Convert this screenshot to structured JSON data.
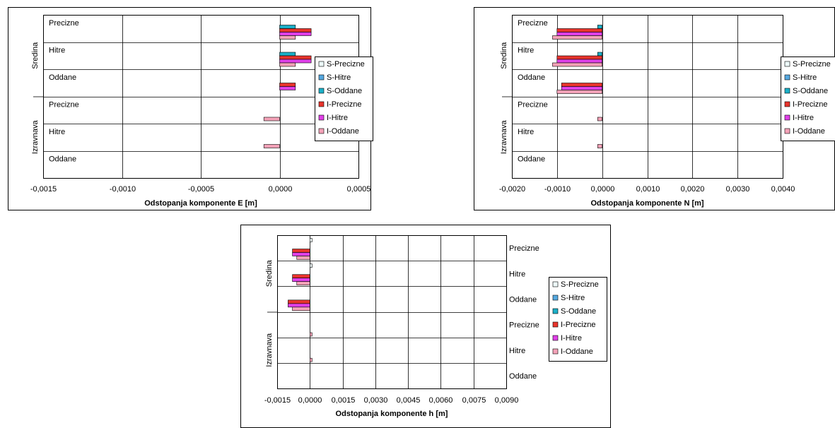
{
  "legend_items": [
    {
      "label": "S-Precizne",
      "color": "#eefafa"
    },
    {
      "label": "S-Hitre",
      "color": "#55a8e0"
    },
    {
      "label": "S-Oddane",
      "color": "#1bb0c8"
    },
    {
      "label": "I-Precizne",
      "color": "#e8342c"
    },
    {
      "label": "I-Hitre",
      "color": "#e040e8"
    },
    {
      "label": "I-Oddane",
      "color": "#f4a2b8"
    }
  ],
  "chart_data": [
    {
      "type": "bar",
      "orientation": "horizontal",
      "xlabel": "Odstopanja komponente E [m]",
      "xlim": [
        -0.0015,
        0.0005
      ],
      "xticks": [
        "-0,0015",
        "-0,0010",
        "-0,0005",
        "0,0000",
        "0,0005"
      ],
      "category_label_position": "left",
      "groups": [
        {
          "label": "Sredina",
          "categories": [
            "Precizne",
            "Hitre",
            "Oddane"
          ]
        },
        {
          "label": "Izravnava",
          "categories": [
            "Precizne",
            "Hitre",
            "Oddane"
          ]
        }
      ],
      "series": [
        {
          "name": "S-Precizne",
          "values": [
            0,
            0,
            0,
            0,
            0,
            0
          ]
        },
        {
          "name": "S-Hitre",
          "values": [
            0,
            0,
            0,
            0,
            0,
            0
          ]
        },
        {
          "name": "S-Oddane",
          "values": [
            0.0001,
            0.0001,
            0,
            0,
            0,
            0
          ]
        },
        {
          "name": "I-Precizne",
          "values": [
            0.0002,
            0.0002,
            0.0001,
            0,
            0,
            0
          ]
        },
        {
          "name": "I-Hitre",
          "values": [
            0.0002,
            0.0002,
            0.0001,
            0,
            0,
            0
          ]
        },
        {
          "name": "I-Oddane",
          "values": [
            0.0001,
            0.0001,
            0,
            -0.0001,
            -0.0001,
            0
          ]
        }
      ]
    },
    {
      "type": "bar",
      "orientation": "horizontal",
      "xlabel": "Odstopanja komponente N [m]",
      "xlim": [
        -0.002,
        0.004
      ],
      "xticks": [
        "-0,0020",
        "-0,0010",
        "0,0000",
        "0,0010",
        "0,0020",
        "0,0030",
        "0,0040"
      ],
      "category_label_position": "left",
      "groups": [
        {
          "label": "Sredina",
          "categories": [
            "Precizne",
            "Hitre",
            "Oddane"
          ]
        },
        {
          "label": "Izravnava",
          "categories": [
            "Precizne",
            "Hitre",
            "Oddane"
          ]
        }
      ],
      "series": [
        {
          "name": "S-Precizne",
          "values": [
            0,
            0,
            0,
            0,
            0,
            0
          ]
        },
        {
          "name": "S-Hitre",
          "values": [
            0,
            0,
            0,
            0,
            0,
            0
          ]
        },
        {
          "name": "S-Oddane",
          "values": [
            -0.0001,
            -0.0001,
            0,
            0,
            0,
            0
          ]
        },
        {
          "name": "I-Precizne",
          "values": [
            -0.001,
            -0.001,
            -0.0009,
            0,
            0,
            0
          ]
        },
        {
          "name": "I-Hitre",
          "values": [
            -0.001,
            -0.001,
            -0.0009,
            0,
            0,
            0
          ]
        },
        {
          "name": "I-Oddane",
          "values": [
            -0.0011,
            -0.0011,
            -0.001,
            -0.0001,
            -0.0001,
            0
          ]
        }
      ]
    },
    {
      "type": "bar",
      "orientation": "horizontal",
      "xlabel": "Odstopanja komponente h [m]",
      "xlim": [
        -0.0015,
        0.009
      ],
      "xticks": [
        "-0,0015",
        "0,0000",
        "0,0015",
        "0,0030",
        "0,0045",
        "0,0060",
        "0,0075",
        "0,0090"
      ],
      "category_label_position": "right",
      "groups": [
        {
          "label": "Sredina",
          "categories": [
            "Precizne",
            "Hitre",
            "Oddane"
          ]
        },
        {
          "label": "Izravnava",
          "categories": [
            "Precizne",
            "Hitre",
            "Oddane"
          ]
        }
      ],
      "series": [
        {
          "name": "S-Precizne",
          "values": [
            0.0001,
            0.0001,
            0,
            0,
            0,
            0
          ]
        },
        {
          "name": "S-Hitre",
          "values": [
            0,
            0,
            0,
            0,
            0,
            0
          ]
        },
        {
          "name": "S-Oddane",
          "values": [
            0,
            0,
            0,
            0,
            0,
            0
          ]
        },
        {
          "name": "I-Precizne",
          "values": [
            -0.0008,
            -0.0008,
            -0.001,
            0,
            0,
            0
          ]
        },
        {
          "name": "I-Hitre",
          "values": [
            -0.0008,
            -0.0008,
            -0.001,
            0,
            0,
            0
          ]
        },
        {
          "name": "I-Oddane",
          "values": [
            -0.0006,
            -0.0006,
            -0.0008,
            0.0001,
            0.0001,
            0
          ]
        }
      ]
    }
  ]
}
